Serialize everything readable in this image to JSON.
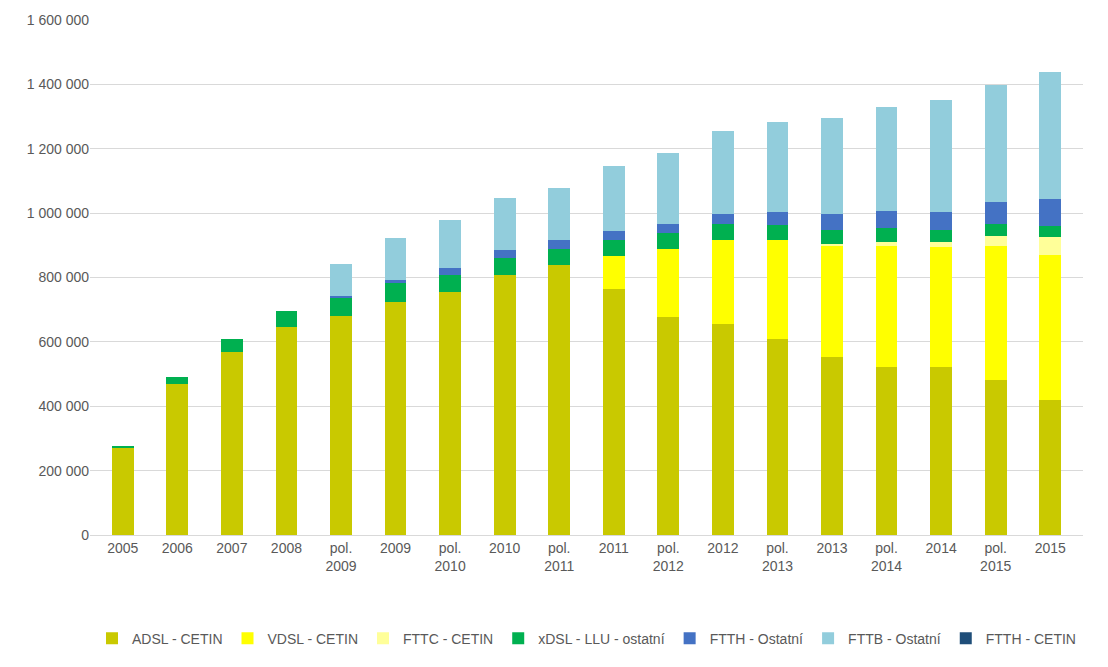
{
  "chart_data": {
    "type": "bar",
    "stacked": true,
    "grid": true,
    "legend": "bottom",
    "categories": [
      "2005",
      "2006",
      "2007",
      "2008",
      "pol. 2009",
      "2009",
      "pol. 2010",
      "2010",
      "pol. 2011",
      "2011",
      "pol. 2012",
      "2012",
      "pol. 2013",
      "2013",
      "pol. 2014",
      "2014",
      "pol. 2015",
      "2015"
    ],
    "ylim": [
      0,
      1600000
    ],
    "yticks": [
      0,
      {
        "value": 200000,
        "label": "200 000"
      },
      {
        "value": 400000,
        "label": "400 000"
      },
      {
        "value": 600000,
        "label": "600 000"
      },
      {
        "value": 800000,
        "label": "800 000"
      },
      {
        "value": 1000000,
        "label": "1 000 000"
      },
      {
        "value": 1200000,
        "label": "1 200 000"
      },
      {
        "value": 1400000,
        "label": "1 400 000"
      },
      {
        "value": 1600000,
        "label": "1 600 000"
      }
    ],
    "series": [
      {
        "name": "ADSL - CETIN",
        "color": "#c9c900",
        "values": [
          270000,
          470000,
          570000,
          645000,
          680000,
          725000,
          755000,
          808000,
          840000,
          765000,
          678000,
          655000,
          608000,
          553000,
          522000,
          522000,
          483000,
          420000
        ]
      },
      {
        "name": "VDSL - CETIN",
        "color": "#ffff00",
        "values": [
          0,
          0,
          0,
          0,
          0,
          0,
          0,
          0,
          0,
          103000,
          212000,
          260000,
          310000,
          347000,
          375000,
          373000,
          414000,
          450000
        ]
      },
      {
        "name": "FTTC - CETIN",
        "color": "#ffff99",
        "values": [
          0,
          0,
          0,
          0,
          0,
          0,
          0,
          0,
          0,
          0,
          0,
          0,
          0,
          3000,
          12000,
          15000,
          33000,
          55000
        ]
      },
      {
        "name": "xDSL - LLU - ostatní",
        "color": "#00b050",
        "values": [
          8000,
          22000,
          40000,
          52000,
          58000,
          57000,
          52000,
          53000,
          50000,
          50000,
          48000,
          50000,
          45000,
          45000,
          45000,
          38000,
          35000,
          35000
        ]
      },
      {
        "name": "FTTH - Ostatní",
        "color": "#4472c4",
        "values": [
          0,
          0,
          0,
          0,
          3000,
          10000,
          21000,
          26000,
          28000,
          27000,
          29000,
          33000,
          42000,
          50000,
          53000,
          54000,
          70000,
          83000
        ]
      },
      {
        "name": "FTTB - Ostatní",
        "color": "#92cddc",
        "values": [
          0,
          0,
          0,
          0,
          102000,
          130000,
          150000,
          161000,
          160000,
          200000,
          221000,
          258000,
          278000,
          298000,
          323000,
          348000,
          362000,
          397000
        ]
      },
      {
        "name": "FTTH - CETIN",
        "color": "#1f4e79",
        "values": [
          0,
          0,
          0,
          0,
          0,
          0,
          0,
          0,
          0,
          0,
          0,
          0,
          0,
          0,
          0,
          0,
          0,
          0
        ]
      }
    ]
  }
}
